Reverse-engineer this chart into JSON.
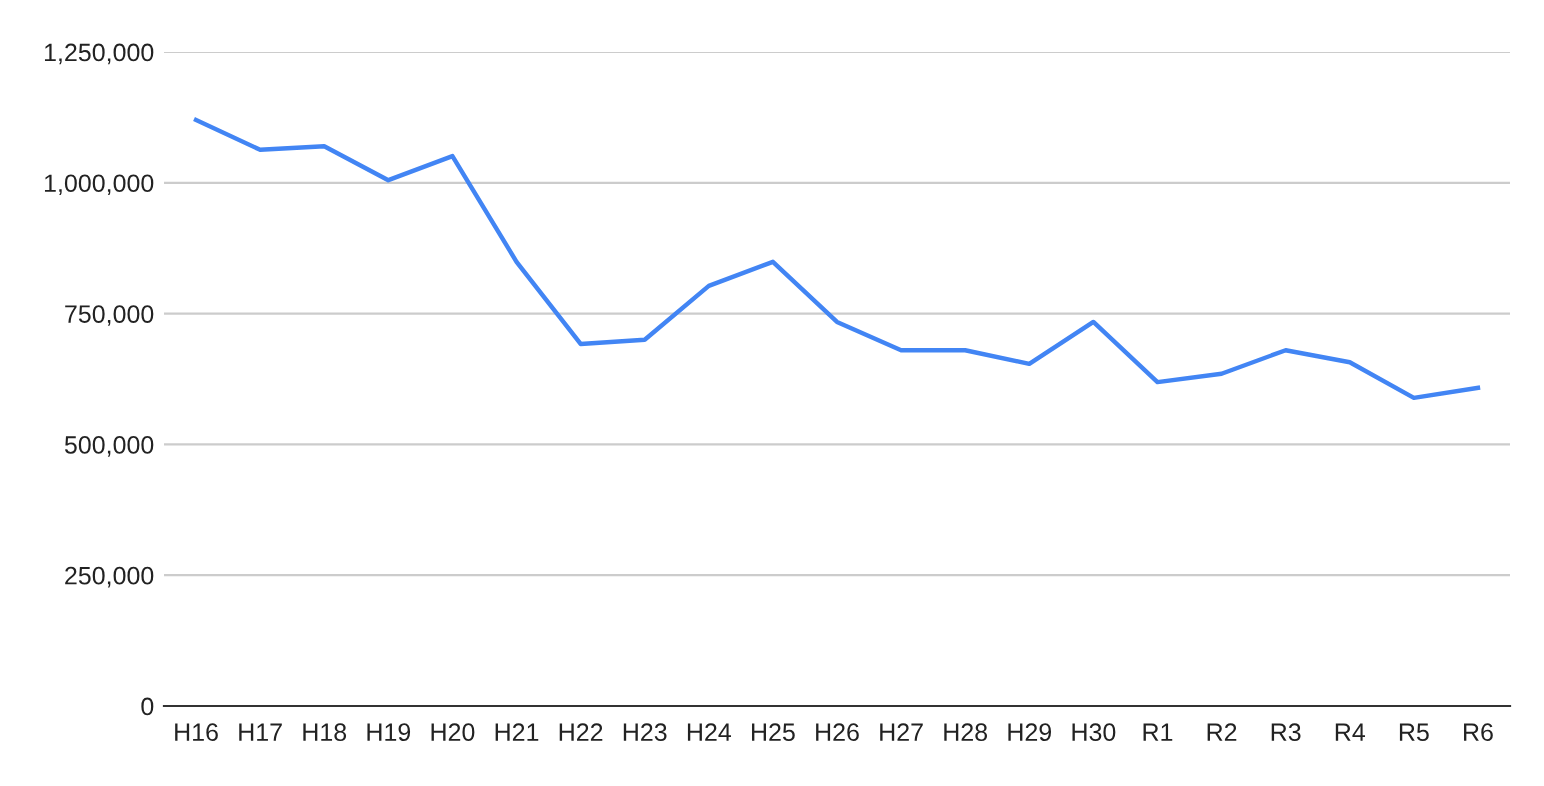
{
  "chart_data": {
    "type": "line",
    "categories": [
      "H16",
      "H17",
      "H18",
      "H19",
      "H20",
      "H21",
      "H22",
      "H23",
      "H24",
      "H25",
      "H26",
      "H27",
      "H28",
      "H29",
      "H30",
      "R1",
      "R2",
      "R3",
      "R4",
      "R5",
      "R6"
    ],
    "series": [
      {
        "color": "#4285f4",
        "values": [
          1120000,
          1063000,
          1070000,
          1005000,
          1051000,
          849000,
          692000,
          700000,
          803000,
          849000,
          734000,
          680000,
          680000,
          654000,
          734000,
          619000,
          635000,
          680000,
          657000,
          589000,
          608000
        ]
      }
    ],
    "ylim": [
      0,
      1250000
    ],
    "yticks": [
      {
        "value": 0,
        "label": "0"
      },
      {
        "value": 250000,
        "label": "250,000"
      },
      {
        "value": 500000,
        "label": "500,000"
      },
      {
        "value": 750000,
        "label": "750,000"
      },
      {
        "value": 1000000,
        "label": "1,000,000"
      },
      {
        "value": 1250000,
        "label": "1,250,000"
      }
    ],
    "grid": "y",
    "marker": "none",
    "line_style": "solid"
  }
}
